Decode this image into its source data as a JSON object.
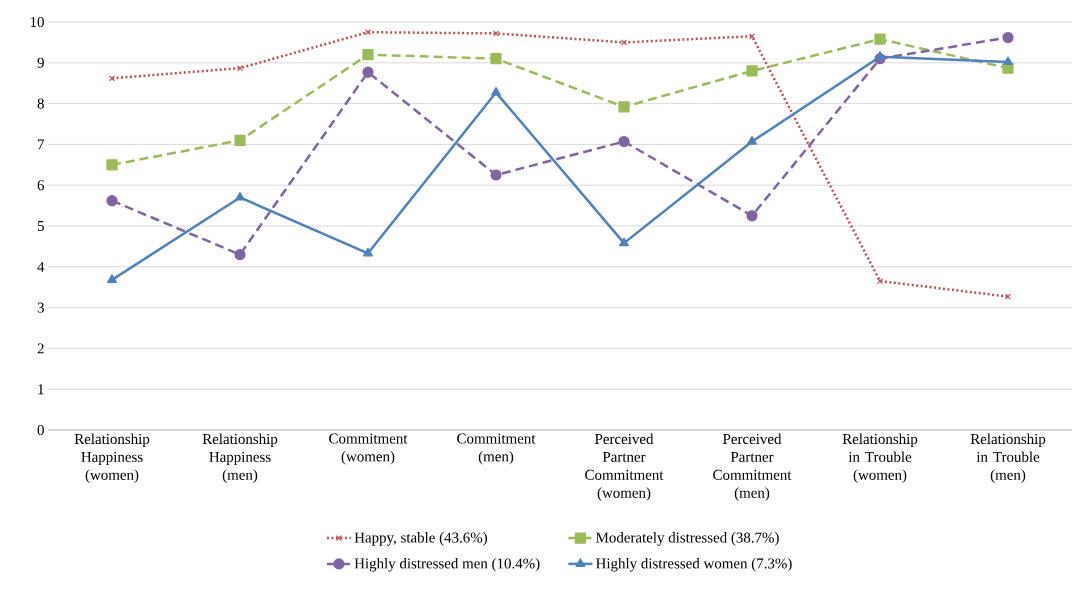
{
  "chart_data": {
    "type": "line",
    "categories": [
      "Relationship Happiness (women)",
      "Relationship Happiness (men)",
      "Commitment (women)",
      "Commitment (men)",
      "Perceived Partner Commitment (women)",
      "Perceived Partner Commitment (men)",
      "Relationship in Trouble (women)",
      "Relationship in Trouble (men)"
    ],
    "series": [
      {
        "name": "Happy, stable (43.6%)",
        "color": "#c0504d",
        "marker": "cross",
        "line_style": "dotted",
        "values": [
          8.62,
          8.87,
          9.75,
          9.72,
          9.5,
          9.65,
          3.65,
          3.27
        ]
      },
      {
        "name": "Moderately distressed (38.7%)",
        "color": "#9bbb59",
        "marker": "square",
        "line_style": "dashed",
        "values": [
          6.5,
          7.1,
          9.2,
          9.1,
          7.92,
          8.8,
          9.58,
          8.87
        ]
      },
      {
        "name": "Highly distressed men (10.4%)",
        "color": "#8064a2",
        "marker": "circle",
        "line_style": "dashed",
        "values": [
          5.62,
          4.3,
          8.77,
          6.25,
          7.07,
          5.25,
          9.1,
          9.62
        ]
      },
      {
        "name": "Highly distressed women (7.3%)",
        "color": "#4f81bd",
        "marker": "triangle",
        "line_style": "solid",
        "values": [
          3.68,
          5.7,
          4.33,
          8.27,
          4.58,
          7.07,
          9.15,
          9.02
        ]
      }
    ],
    "ylim": [
      0,
      10
    ],
    "yticks": [
      0,
      1,
      2,
      3,
      4,
      5,
      6,
      7,
      8,
      9,
      10
    ],
    "grid": "y",
    "legend": "bottom"
  }
}
